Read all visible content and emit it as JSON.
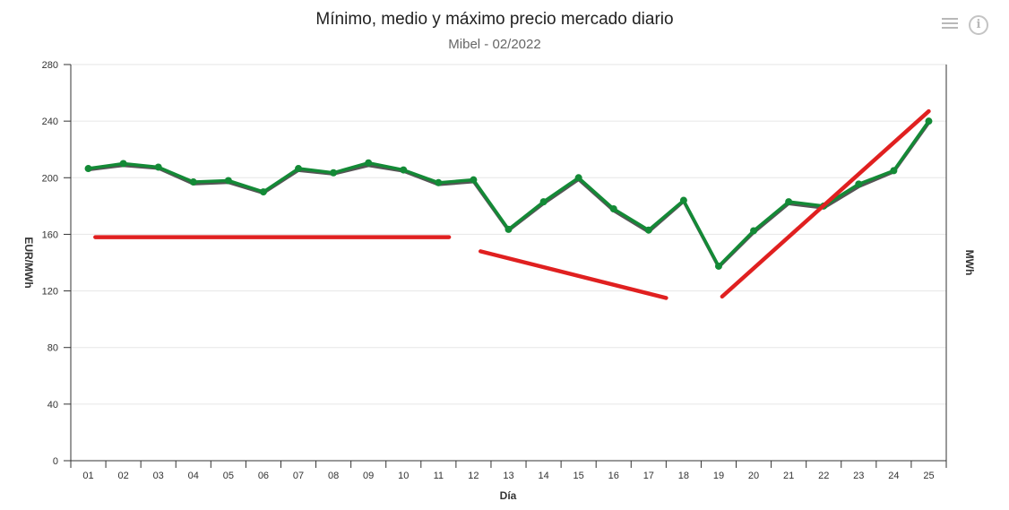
{
  "chart_data": {
    "type": "line",
    "title": "Mínimo, medio y máximo precio mercado diario",
    "subtitle": "Mibel - 02/2022",
    "xlabel": "Día",
    "ylabel": "EUR/MWh",
    "ylabel_right": "MWh",
    "categories": [
      "01",
      "02",
      "03",
      "04",
      "05",
      "06",
      "07",
      "08",
      "09",
      "10",
      "11",
      "12",
      "13",
      "14",
      "15",
      "16",
      "17",
      "18",
      "19",
      "20",
      "21",
      "22",
      "23",
      "24",
      "25"
    ],
    "ylim": [
      0,
      280
    ],
    "yticks": [
      0,
      40,
      80,
      120,
      160,
      200,
      240,
      280
    ],
    "grid": true,
    "series": [
      {
        "color": "#555555",
        "values": [
          205.5,
          208.5,
          206.5,
          195.5,
          196.5,
          189,
          205,
          202.5,
          208.5,
          204.5,
          195,
          197,
          162.5,
          181.5,
          198.5,
          176.5,
          161.5,
          183,
          136.5,
          161,
          181.5,
          178.5,
          193.5,
          204,
          238.5
        ]
      },
      {
        "color": "#138a36",
        "values": [
          206.5,
          210,
          207.5,
          197,
          198,
          190,
          206.5,
          203.5,
          210.5,
          205.5,
          196.5,
          198.5,
          163.5,
          183,
          200,
          178,
          163,
          184,
          137.5,
          162.5,
          183,
          180,
          195.5,
          205,
          240
        ]
      }
    ],
    "annotations": {
      "color": "#e02020",
      "segments": [
        {
          "x1": 0.2,
          "y1": 158,
          "x2": 10.3,
          "y2": 158
        },
        {
          "x1": 11.2,
          "y1": 148,
          "x2": 16.5,
          "y2": 115
        },
        {
          "x1": 18.1,
          "y1": 116,
          "x2": 24,
          "y2": 247
        }
      ]
    }
  },
  "toolbar": {
    "menu_icon": "hamburger-menu-icon",
    "info_icon": "info-circle-icon",
    "info_glyph": "i"
  }
}
